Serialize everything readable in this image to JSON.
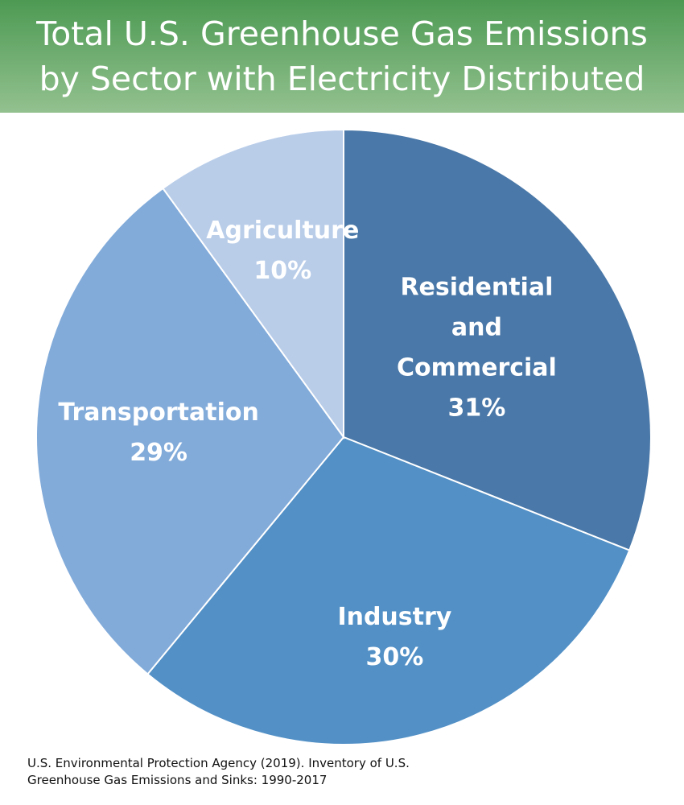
{
  "title": {
    "line1": "Total U.S. Greenhouse Gas Emissions",
    "line2": "by Sector with Electricity Distributed"
  },
  "source": {
    "line1": "U.S. Environmental Protection Agency (2019). Inventory of U.S.",
    "line2": "Greenhouse Gas Emissions and Sinks: 1990-2017"
  },
  "colors": {
    "banner_top": "#4d9a53",
    "banner_bottom": "#93c18f",
    "slice_border": "#ffffff"
  },
  "chart_data": {
    "type": "pie",
    "title": "Total U.S. Greenhouse Gas Emissions by Sector with Electricity Distributed",
    "start": "12 o'clock",
    "direction": "clockwise",
    "slices": [
      {
        "label_lines": [
          "Residential",
          "and",
          "Commercial"
        ],
        "percent_label": "31%",
        "value": 31,
        "color": "#4a78a8"
      },
      {
        "label_lines": [
          "Industry"
        ],
        "percent_label": "30%",
        "value": 30,
        "color": "#5290c6"
      },
      {
        "label_lines": [
          "Transportation"
        ],
        "percent_label": "29%",
        "value": 29,
        "color": "#82abda"
      },
      {
        "label_lines": [
          "Agriculture"
        ],
        "percent_label": "10%",
        "value": 10,
        "color": "#b9cde9"
      }
    ]
  }
}
